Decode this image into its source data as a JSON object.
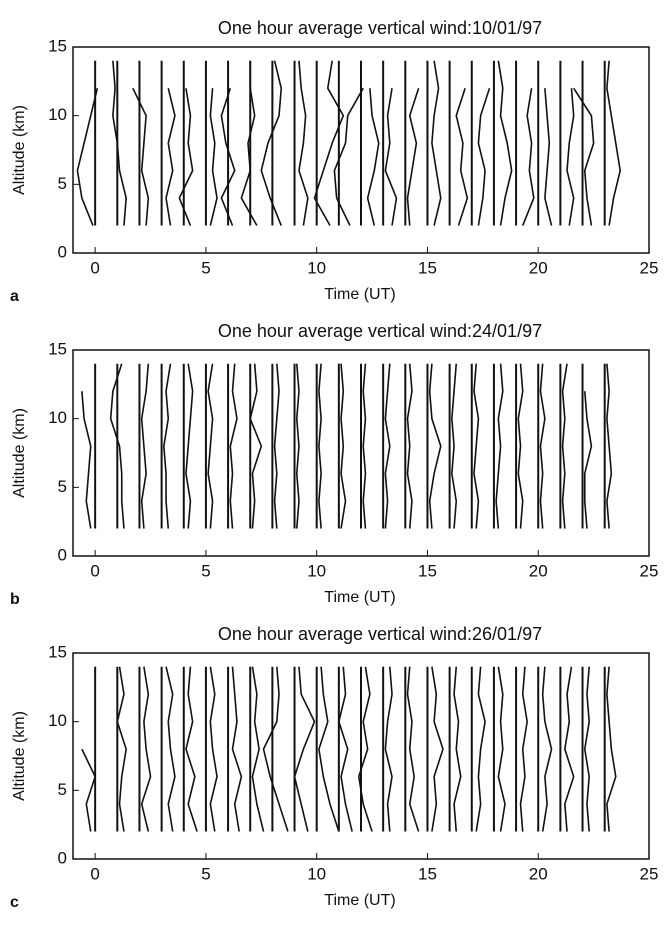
{
  "chart_data": [
    {
      "type": "profile",
      "title": "One hour average vertical wind:10/01/97",
      "panel_label": "a",
      "x_label": "Time (UT)",
      "y_label": "Altitude (km)",
      "xlim": [
        -1,
        25
      ],
      "ylim": [
        0,
        15
      ],
      "xticks": [
        0,
        5,
        10,
        15,
        20,
        25
      ],
      "yticks": [
        0,
        5,
        10,
        15
      ],
      "color": "#111111",
      "hours": [
        0,
        1,
        2,
        3,
        4,
        5,
        6,
        7,
        8,
        9,
        10,
        11,
        12,
        13,
        14,
        15,
        16,
        17,
        18,
        19,
        20,
        21,
        22,
        23
      ],
      "altitudes": [
        2,
        4,
        6,
        8,
        10,
        12,
        14
      ],
      "profiles": [
        [
          -0.1,
          -0.6,
          -0.8,
          -0.5,
          -0.2,
          0.1,
          null
        ],
        [
          1.3,
          1.4,
          1.1,
          1.0,
          0.8,
          0.9,
          0.8
        ],
        [
          2.3,
          2.4,
          2.1,
          2.2,
          2.3,
          1.7,
          null
        ],
        [
          3.4,
          3.2,
          3.5,
          3.3,
          3.6,
          3.3,
          null
        ],
        [
          4.3,
          3.8,
          4.4,
          4.2,
          4.3,
          4.1,
          null
        ],
        [
          5.2,
          5.5,
          5.3,
          5.4,
          5.2,
          5.3,
          null
        ],
        [
          6.2,
          5.7,
          6.3,
          5.9,
          5.7,
          6.1,
          null
        ],
        [
          7.3,
          6.6,
          7.0,
          6.9,
          7.2,
          7.0,
          7.0
        ],
        [
          8.4,
          7.9,
          7.5,
          7.8,
          8.3,
          8.4,
          8.1
        ],
        [
          9.4,
          9.6,
          9.2,
          9.4,
          9.5,
          9.3,
          9.2
        ],
        [
          10.6,
          9.9,
          10.3,
          10.7,
          11.2,
          10.5,
          10.7
        ],
        [
          11.5,
          10.9,
          10.8,
          11.3,
          11.4,
          12.1,
          null
        ],
        [
          12.6,
          12.3,
          12.6,
          12.8,
          12.5,
          12.4,
          null
        ],
        [
          13.4,
          13.6,
          13.1,
          13.3,
          13.2,
          13.4,
          null
        ],
        [
          14.2,
          14.1,
          14.3,
          14.5,
          14.2,
          14.6,
          null
        ],
        [
          15.3,
          15.6,
          15.4,
          15.2,
          15.3,
          15.5,
          15.3
        ],
        [
          16.4,
          16.8,
          16.5,
          16.6,
          16.3,
          16.7,
          null
        ],
        [
          17.3,
          17.5,
          17.6,
          17.3,
          17.4,
          17.8,
          null
        ],
        [
          18.3,
          18.5,
          18.8,
          18.6,
          18.3,
          18.4,
          18.2
        ],
        [
          19.3,
          19.8,
          19.6,
          19.7,
          19.5,
          19.7,
          null
        ],
        [
          20.6,
          20.3,
          20.4,
          20.5,
          20.4,
          20.3,
          null
        ],
        [
          21.4,
          21.6,
          21.3,
          21.4,
          21.6,
          21.5,
          null
        ],
        [
          22.4,
          22.2,
          22.1,
          22.5,
          22.4,
          21.6,
          null
        ],
        [
          23.2,
          23.4,
          23.7,
          23.5,
          23.3,
          23.1,
          23.2
        ]
      ]
    },
    {
      "type": "profile",
      "title": "One hour average vertical wind:24/01/97",
      "panel_label": "b",
      "x_label": "Time (UT)",
      "y_label": "Altitude (km)",
      "xlim": [
        -1,
        25
      ],
      "ylim": [
        0,
        15
      ],
      "xticks": [
        0,
        5,
        10,
        15,
        20,
        25
      ],
      "yticks": [
        0,
        5,
        10,
        15
      ],
      "color": "#111111",
      "hours": [
        0,
        1,
        2,
        3,
        4,
        5,
        6,
        7,
        8,
        9,
        10,
        11,
        12,
        13,
        14,
        15,
        16,
        17,
        18,
        19,
        20,
        21,
        22,
        23
      ],
      "altitudes": [
        2,
        4,
        6,
        8,
        10,
        12,
        14
      ],
      "profiles": [
        [
          -0.2,
          -0.4,
          -0.3,
          -0.2,
          -0.5,
          -0.6,
          null
        ],
        [
          1.3,
          1.2,
          1.2,
          1.1,
          0.7,
          0.8,
          1.2
        ],
        [
          2.2,
          2.1,
          2.3,
          2.2,
          2.1,
          2.3,
          2.4
        ],
        [
          3.3,
          3.2,
          3.2,
          3.1,
          3.3,
          3.2,
          3.4
        ],
        [
          4.2,
          4.3,
          4.1,
          4.2,
          4.3,
          4.4,
          4.2
        ],
        [
          5.2,
          5.3,
          5.1,
          5.2,
          5.3,
          5.1,
          5.3
        ],
        [
          6.2,
          6.1,
          6.2,
          6.1,
          6.4,
          6.2,
          6.3
        ],
        [
          7.1,
          7.2,
          7.1,
          7.5,
          7.0,
          7.3,
          7.2
        ],
        [
          8.2,
          8.1,
          8.2,
          8.1,
          8.2,
          8.3,
          8.2
        ],
        [
          9.1,
          9.2,
          9.1,
          9.2,
          9.1,
          9.2,
          9.1
        ],
        [
          10.2,
          10.1,
          10.2,
          10.1,
          10.2,
          10.1,
          10.2
        ],
        [
          11.1,
          11.3,
          11.1,
          11.2,
          11.1,
          11.2,
          11.1
        ],
        [
          12.2,
          12.1,
          12.2,
          12.1,
          12.2,
          12.1,
          12.2
        ],
        [
          13.1,
          13.2,
          13.1,
          13.3,
          13.1,
          13.2,
          13.3
        ],
        [
          14.2,
          14.3,
          14.1,
          14.2,
          14.1,
          14.3,
          14.2
        ],
        [
          15.2,
          15.1,
          15.3,
          15.6,
          15.2,
          15.1,
          15.2
        ],
        [
          16.2,
          16.3,
          16.1,
          16.2,
          16.1,
          16.2,
          16.3
        ],
        [
          17.2,
          17.3,
          17.1,
          17.2,
          17.3,
          17.1,
          17.2
        ],
        [
          18.2,
          18.1,
          18.2,
          18.3,
          18.2,
          18.4,
          18.3
        ],
        [
          19.2,
          19.3,
          19.1,
          19.2,
          19.1,
          19.3,
          19.2
        ],
        [
          20.2,
          20.1,
          20.2,
          20.1,
          20.3,
          20.1,
          20.2
        ],
        [
          21.2,
          21.1,
          21.2,
          21.1,
          21.2,
          21.1,
          21.3
        ],
        [
          22.2,
          22.1,
          22.1,
          22.4,
          22.2,
          22.1,
          null
        ],
        [
          23.2,
          23.1,
          23.3,
          23.2,
          23.1,
          23.2,
          23.1
        ]
      ]
    },
    {
      "type": "profile",
      "title": "One hour average vertical wind:26/01/97",
      "panel_label": "c",
      "x_label": "Time (UT)",
      "y_label": "Altitude (km)",
      "xlim": [
        -1,
        25
      ],
      "ylim": [
        0,
        15
      ],
      "xticks": [
        0,
        5,
        10,
        15,
        20,
        25
      ],
      "yticks": [
        0,
        5,
        10,
        15
      ],
      "color": "#111111",
      "hours": [
        0,
        1,
        2,
        3,
        4,
        5,
        6,
        7,
        8,
        9,
        10,
        11,
        12,
        13,
        14,
        15,
        16,
        17,
        18,
        19,
        20,
        21,
        22,
        23
      ],
      "altitudes": [
        2,
        4,
        6,
        8,
        10,
        12,
        14
      ],
      "profiles": [
        [
          -0.2,
          -0.4,
          0.0,
          -0.6,
          null,
          null,
          null
        ],
        [
          1.3,
          1.1,
          1.2,
          1.4,
          1.0,
          1.3,
          1.1
        ],
        [
          2.4,
          2.1,
          2.5,
          2.3,
          2.2,
          2.4,
          2.2
        ],
        [
          3.5,
          3.3,
          3.6,
          3.4,
          3.3,
          3.5,
          3.2
        ],
        [
          4.6,
          4.2,
          4.5,
          4.1,
          4.4,
          4.2,
          4.3
        ],
        [
          5.4,
          5.2,
          5.5,
          5.3,
          5.2,
          5.4,
          5.2
        ],
        [
          6.5,
          6.3,
          6.6,
          6.2,
          6.4,
          6.3,
          6.2
        ],
        [
          7.6,
          7.3,
          7.1,
          7.4,
          7.2,
          7.3,
          7.1
        ],
        [
          8.7,
          8.3,
          7.9,
          7.6,
          8.2,
          8.3,
          8.2
        ],
        [
          9.6,
          9.3,
          9.0,
          9.4,
          9.9,
          9.3,
          9.2
        ],
        [
          11.0,
          10.6,
          10.3,
          10.1,
          10.5,
          10.3,
          10.2
        ],
        [
          11.6,
          11.3,
          11.1,
          11.4,
          11.0,
          11.3,
          11.2
        ],
        [
          12.5,
          12.1,
          11.9,
          12.3,
          12.1,
          12.4,
          12.2
        ],
        [
          13.3,
          13.2,
          13.4,
          13.1,
          13.2,
          13.4,
          13.3
        ],
        [
          14.6,
          14.2,
          14.4,
          14.2,
          14.3,
          14.1,
          14.2
        ],
        [
          15.2,
          15.4,
          15.3,
          15.7,
          15.3,
          15.4,
          15.2
        ],
        [
          16.3,
          16.2,
          16.5,
          16.3,
          16.4,
          16.2,
          16.3
        ],
        [
          17.2,
          17.4,
          17.3,
          17.4,
          17.6,
          17.3,
          17.4
        ],
        [
          18.3,
          18.5,
          18.2,
          18.4,
          18.3,
          18.4,
          18.2
        ],
        [
          19.3,
          19.2,
          19.4,
          19.3,
          19.5,
          19.3,
          19.4
        ],
        [
          20.2,
          20.4,
          20.3,
          20.6,
          20.3,
          20.2,
          20.3
        ],
        [
          21.3,
          21.2,
          21.6,
          21.2,
          21.4,
          21.3,
          21.5
        ],
        [
          22.3,
          22.2,
          22.3,
          22.1,
          22.3,
          22.2,
          22.3
        ],
        [
          23.2,
          23.1,
          23.5,
          23.3,
          23.2,
          23.1,
          23.2
        ]
      ]
    }
  ]
}
